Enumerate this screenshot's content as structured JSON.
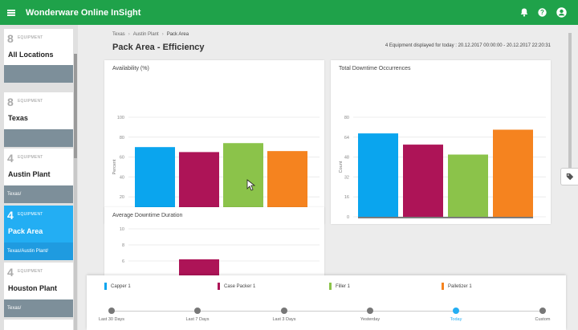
{
  "app": {
    "title": "Wonderware Online InSight"
  },
  "header_icons": [
    "bell-icon",
    "help-icon",
    "account-icon"
  ],
  "sidebar": {
    "items": [
      {
        "count": "8",
        "unit": "EQUIPMENT",
        "name": "All Locations",
        "path": "",
        "active": false
      },
      {
        "count": "8",
        "unit": "EQUIPMENT",
        "name": "Texas",
        "path": "",
        "active": false
      },
      {
        "count": "4",
        "unit": "EQUIPMENT",
        "name": "Austin Plant",
        "path": "Texas/",
        "active": false
      },
      {
        "count": "4",
        "unit": "EQUIPMENT",
        "name": "Pack Area",
        "path": "Texas/Austin Plant/",
        "active": true
      },
      {
        "count": "4",
        "unit": "EQUIPMENT",
        "name": "Houston Plant",
        "path": "Texas/",
        "active": false
      }
    ]
  },
  "breadcrumb": {
    "items": [
      "Texas",
      "Austin Plant",
      "Pack Area"
    ]
  },
  "page": {
    "title": "Pack Area - Efficiency",
    "summary": "4 Equipment displayed for today : 20.12.2017 00:00:00 - 20.12.2017 22:20:31"
  },
  "colors": {
    "capper": "#0aa5ee",
    "case_packer": "#ad1457",
    "filler": "#8bc34a",
    "palletizer": "#f5831f",
    "accent": "#23aef3",
    "brand": "#1fa24a"
  },
  "chart_data": [
    {
      "type": "bar",
      "title": "Availability (%)",
      "ylabel": "Percent",
      "ylim": [
        0,
        100
      ],
      "yticks": [
        0,
        20,
        40,
        60,
        80,
        100
      ],
      "categories": [
        "Capper 1",
        "Case Packer 1",
        "Filler 1",
        "Palletizer 1"
      ],
      "values": [
        70,
        65,
        74,
        66
      ]
    },
    {
      "type": "bar",
      "title": "Total Downtime Occurrences",
      "ylabel": "Count",
      "ylim": [
        0,
        80
      ],
      "yticks": [
        0,
        16,
        32,
        48,
        64,
        80
      ],
      "categories": [
        "Capper 1",
        "Case Packer 1",
        "Filler 1",
        "Palletizer 1"
      ],
      "values": [
        67,
        58,
        50,
        70
      ]
    },
    {
      "type": "bar",
      "title": "Average Downtime Duration",
      "ylabel": "",
      "ylim": [
        0,
        10
      ],
      "yticks": [
        6,
        8,
        10
      ],
      "categories": [
        "Capper 1",
        "Case Packer 1",
        "Filler 1",
        "Palletizer 1"
      ],
      "values": [
        0,
        6.2,
        0,
        0
      ]
    }
  ],
  "legend": {
    "items": [
      {
        "label": "Capper 1",
        "color": "#0aa5ee"
      },
      {
        "label": "Case Packer 1",
        "color": "#ad1457"
      },
      {
        "label": "Filler 1",
        "color": "#8bc34a"
      },
      {
        "label": "Palletizer 1",
        "color": "#f5831f"
      }
    ]
  },
  "timeline": {
    "options": [
      "Last 30 Days",
      "Last 7 Days",
      "Last 3 Days",
      "Yesterday",
      "Today",
      "Custom"
    ],
    "selected": "Today"
  }
}
